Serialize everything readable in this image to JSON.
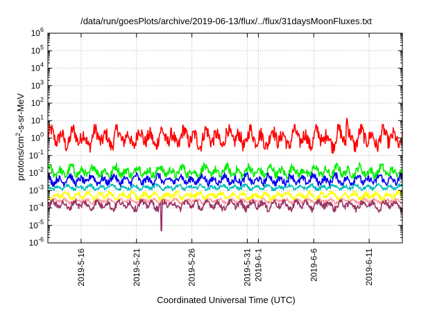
{
  "chart_data": {
    "type": "line",
    "title": "/data/run/goesPlots/archive/2019-06-13/flux/../flux/31daysMoonFluxes.txt",
    "xlabel": "Coordinated Universal Time (UTC)",
    "ylabel": "protons/cm2-s-sr-MeV",
    "ylabel_parts": {
      "pre": "protons/cm",
      "sup": "2",
      "post": "-s-sr-MeV"
    },
    "yscale": "log",
    "ylim": [
      1e-06,
      1000000.0
    ],
    "y_ticks": [
      {
        "base": "10",
        "exp": "-6"
      },
      {
        "base": "10",
        "exp": "-5"
      },
      {
        "base": "10",
        "exp": "-4"
      },
      {
        "base": "10",
        "exp": "-3"
      },
      {
        "base": "10",
        "exp": "-2"
      },
      {
        "base": "10",
        "exp": "-1"
      },
      {
        "base": "10",
        "exp": "0"
      },
      {
        "base": "10",
        "exp": "1"
      },
      {
        "base": "10",
        "exp": "2"
      },
      {
        "base": "10",
        "exp": "3"
      },
      {
        "base": "10",
        "exp": "4"
      },
      {
        "base": "10",
        "exp": "5"
      },
      {
        "base": "10",
        "exp": "6"
      }
    ],
    "xlim": [
      "2019-05-13",
      "2019-06-14"
    ],
    "x_ticks": [
      {
        "label": "2019-5-16",
        "date": "2019-05-16"
      },
      {
        "label": "2019-5-21",
        "date": "2019-05-21"
      },
      {
        "label": "2019-5-26",
        "date": "2019-05-26"
      },
      {
        "label": "2019-5-31",
        "date": "2019-05-31"
      },
      {
        "label": "2019-6-1",
        "date": "2019-06-01"
      },
      {
        "label": "2019-6-6",
        "date": "2019-06-06"
      },
      {
        "label": "2019-6-11",
        "date": "2019-06-11"
      }
    ],
    "grid": true,
    "legend": "none",
    "series": [
      {
        "color": "#ff0000",
        "typical": 1.0,
        "low": 0.08,
        "high": 6,
        "peak_date": "2019-06-09",
        "peak_value": 15
      },
      {
        "color": "#00ee00",
        "typical": 0.012,
        "low": 0.004,
        "high": 0.05
      },
      {
        "color": "#0000ee",
        "typical": 0.004,
        "low": 0.0015,
        "high": 0.012
      },
      {
        "color": "#00bbbb",
        "typical": 0.0015,
        "low": 0.001,
        "high": 0.003
      },
      {
        "color": "#ffff00",
        "typical": 0.0005,
        "low": 0.0002,
        "high": 0.001
      },
      {
        "color": "#ff9999",
        "typical": 0.00025,
        "low": 0.00015,
        "high": 0.0004
      },
      {
        "color": "#993366",
        "typical": 0.00015,
        "low": 4e-05,
        "high": 0.0003,
        "min_date": "2019-05-23",
        "min_value": 5e-06
      }
    ]
  }
}
